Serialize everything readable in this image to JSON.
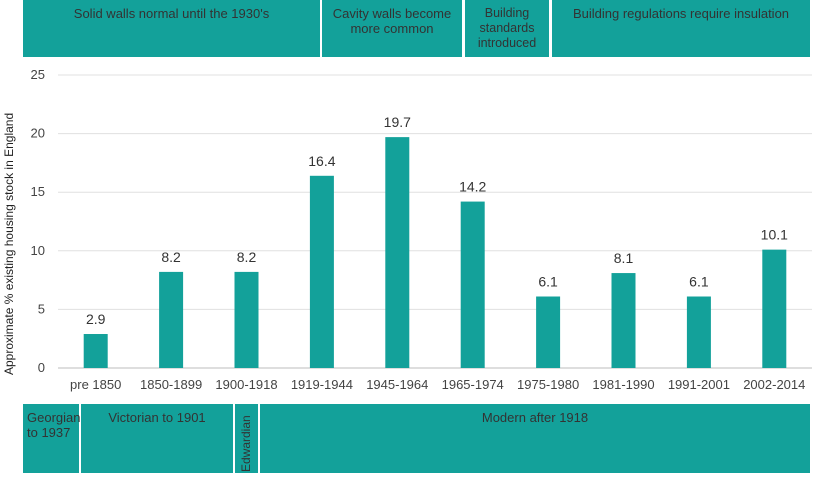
{
  "colors": {
    "bar": "#13a19a",
    "band": "#13a19a",
    "grid": "#e0e0e0",
    "text": "#333333"
  },
  "top_bands": [
    {
      "label": "Solid walls normal until the 1930's"
    },
    {
      "label": "Cavity walls become more common"
    },
    {
      "label": "Building standards introduced"
    },
    {
      "label": "Building regulations require insulation"
    }
  ],
  "bottom_bands": [
    {
      "label": "Georgian to 1937"
    },
    {
      "label": "Victorian to 1901"
    },
    {
      "label": "Edwardian"
    },
    {
      "label": "Modern after 1918"
    }
  ],
  "chart_data": {
    "type": "bar",
    "title": "",
    "xlabel": "",
    "ylabel": "Approximate % existing housing stock in England",
    "categories": [
      "pre 1850",
      "1850-1899",
      "1900-1918",
      "1919-1944",
      "1945-1964",
      "1965-1974",
      "1975-1980",
      "1981-1990",
      "1991-2001",
      "2002-2014"
    ],
    "values": [
      2.9,
      8.2,
      8.2,
      16.4,
      19.7,
      14.2,
      6.1,
      8.1,
      6.1,
      10.1
    ],
    "data_labels": [
      "2.9",
      "8.2",
      "8.2",
      "16.4",
      "19.7",
      "14.2",
      "6.1",
      "8.1",
      "6.1",
      "10.1"
    ],
    "ylim": [
      0,
      25
    ],
    "yticks": [
      0,
      5,
      10,
      15,
      20,
      25
    ],
    "grid": true,
    "legend": "none"
  }
}
